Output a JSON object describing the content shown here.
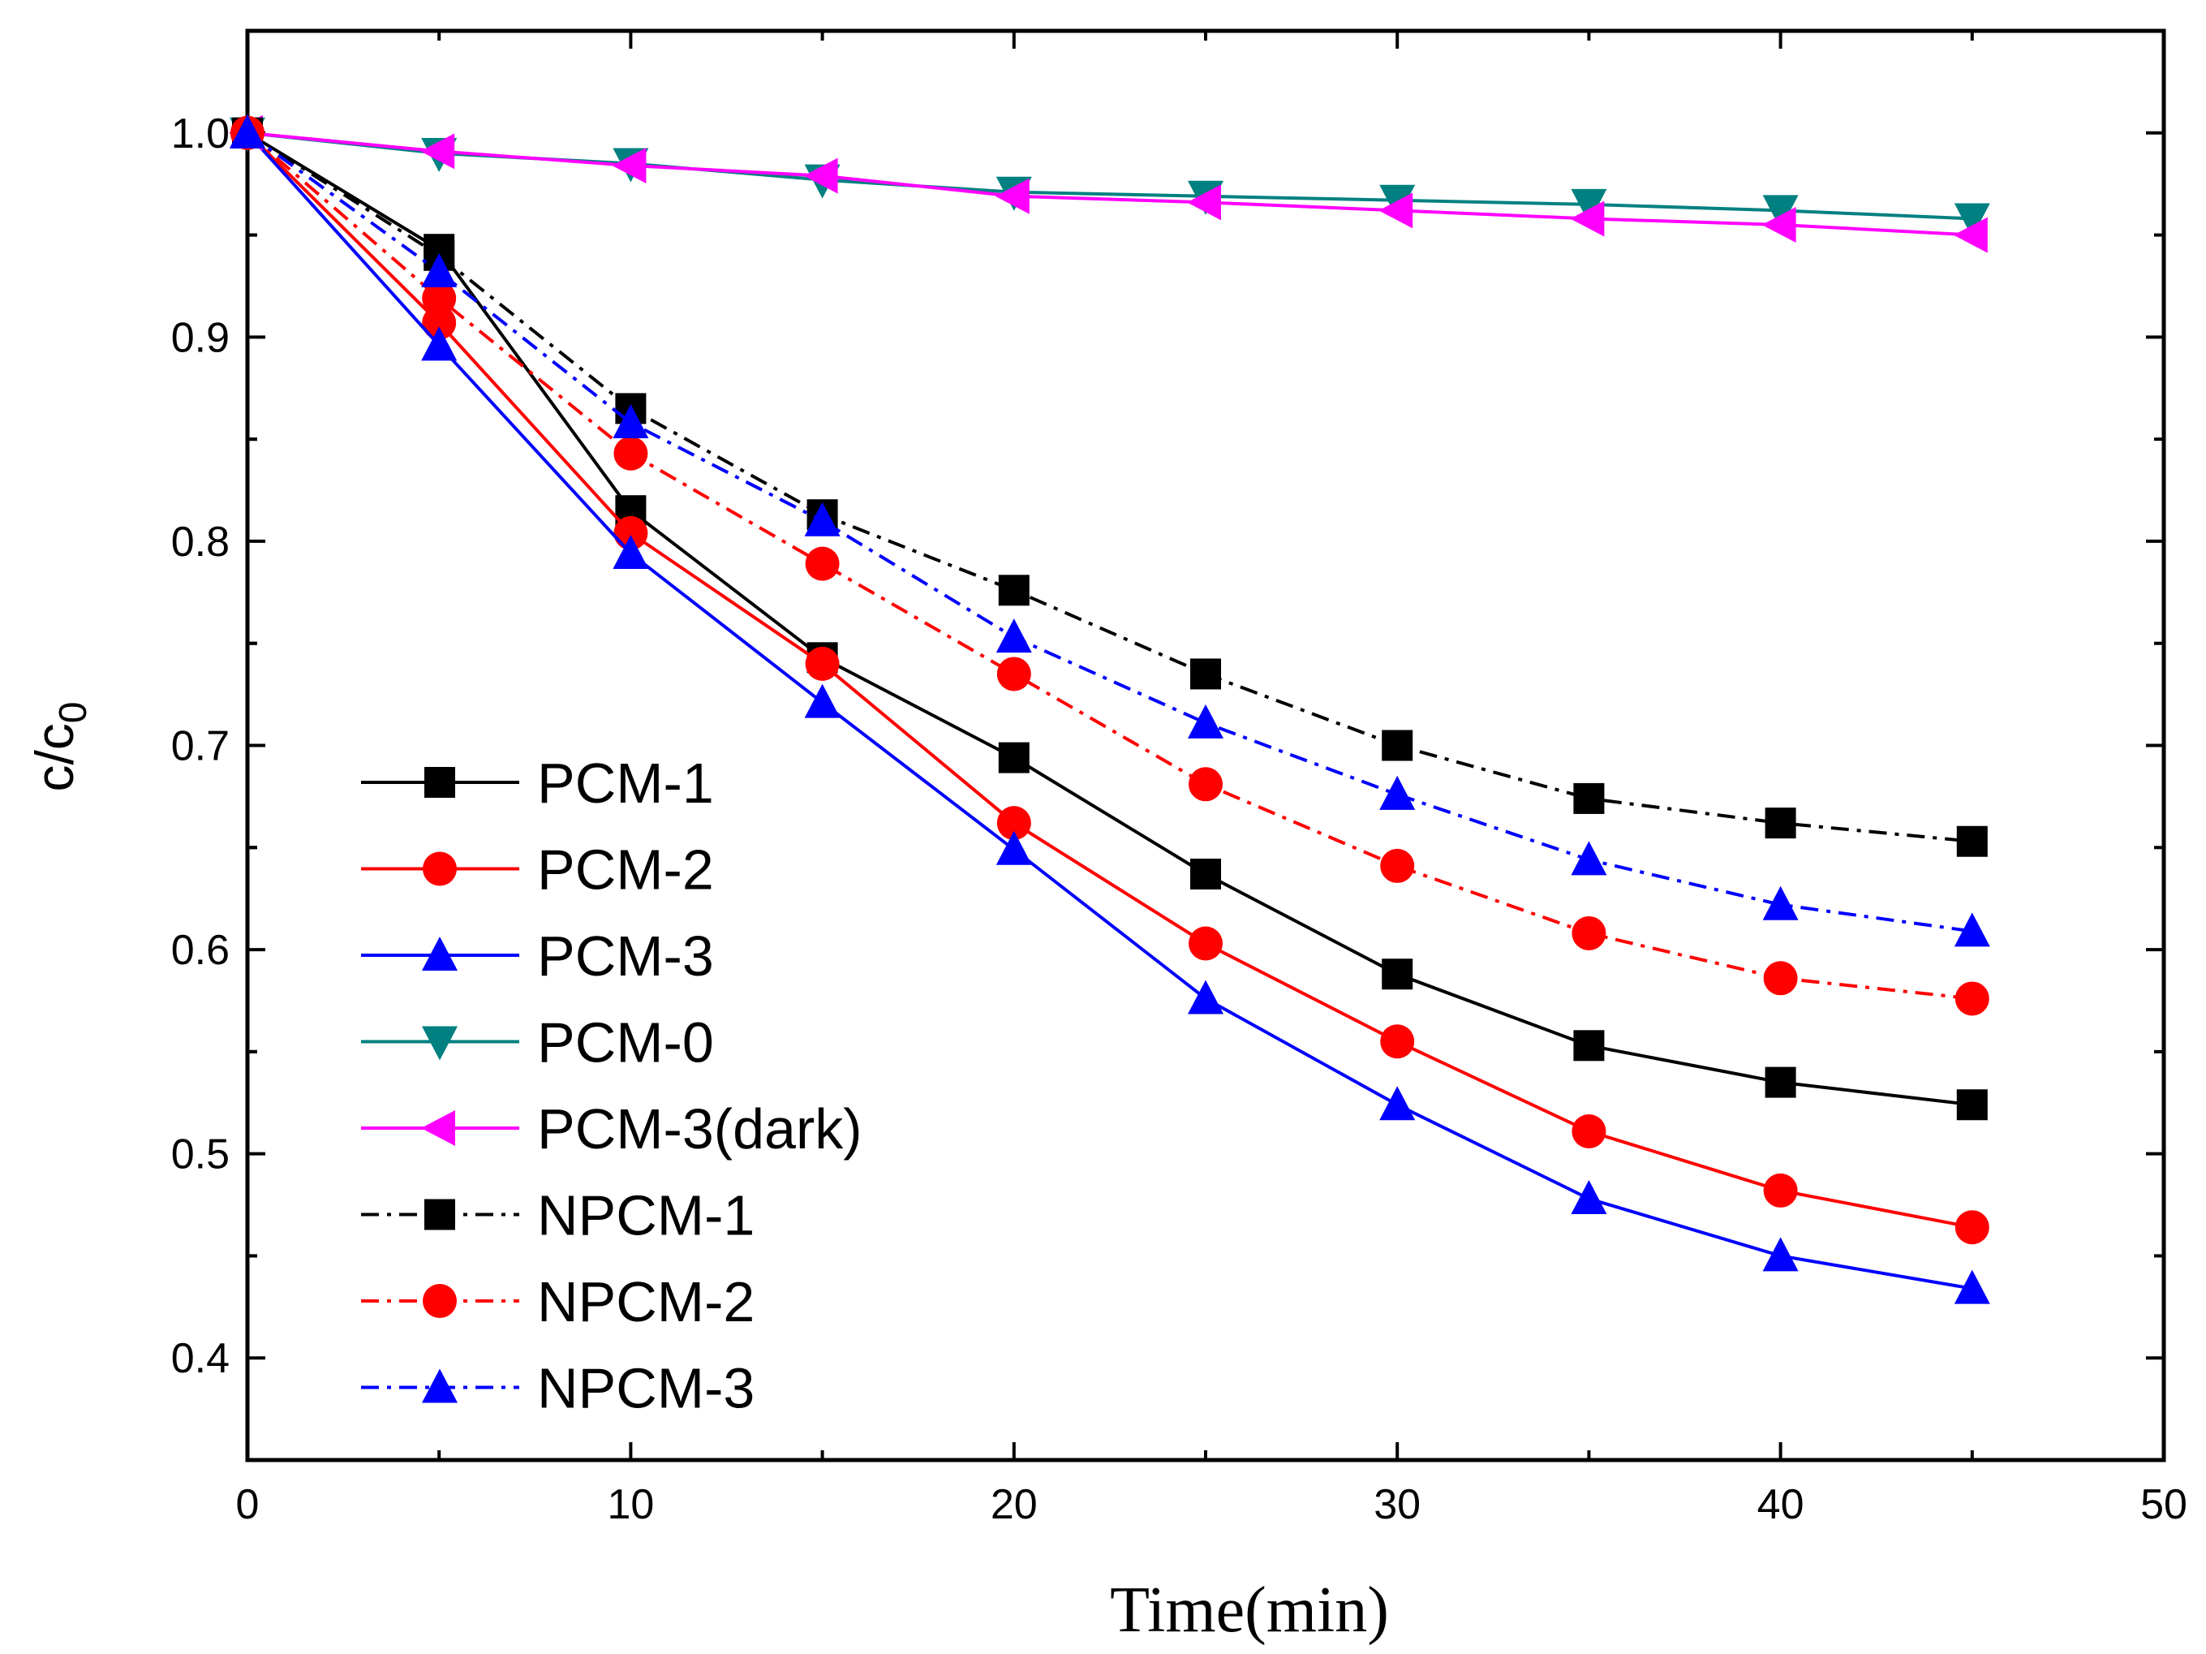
{
  "chart_data": {
    "type": "line",
    "title": "",
    "xlabel": "Time(min)",
    "ylabel": "c/c",
    "ylabel_subscript": "0",
    "xlim": [
      0,
      50
    ],
    "ylim": [
      0.35,
      1.05
    ],
    "xticks": [
      "0",
      "10",
      "20",
      "30",
      "40",
      "50"
    ],
    "yticks": [
      "0.4",
      "0.5",
      "0.6",
      "0.7",
      "0.8",
      "0.9",
      "1.0"
    ],
    "grid": false,
    "legend_position": "bottom-left",
    "x": [
      0,
      5,
      10,
      15,
      20,
      25,
      30,
      35,
      40,
      45
    ],
    "series": [
      {
        "name": "PCM-1",
        "color": "#000000",
        "marker": "square",
        "dash": "solid",
        "values": [
          1.0,
          0.943,
          0.815,
          0.743,
          0.694,
          0.637,
          0.588,
          0.553,
          0.535,
          0.524
        ]
      },
      {
        "name": "PCM-2",
        "color": "#ff0000",
        "marker": "circle",
        "dash": "solid",
        "values": [
          1.0,
          0.907,
          0.804,
          0.74,
          0.662,
          0.603,
          0.555,
          0.511,
          0.482,
          0.464
        ]
      },
      {
        "name": "PCM-3",
        "color": "#0000ff",
        "marker": "triangle-up",
        "dash": "solid",
        "values": [
          1.0,
          0.896,
          0.794,
          0.721,
          0.649,
          0.576,
          0.524,
          0.478,
          0.45,
          0.434
        ]
      },
      {
        "name": "PCM-0",
        "color": "#008080",
        "marker": "triangle-down",
        "dash": "solid",
        "values": [
          1.0,
          0.99,
          0.985,
          0.977,
          0.971,
          0.969,
          0.967,
          0.965,
          0.962,
          0.958
        ]
      },
      {
        "name": "PCM-3(dark)",
        "color": "#ff00ff",
        "marker": "triangle-left",
        "dash": "solid",
        "values": [
          1.0,
          0.991,
          0.984,
          0.979,
          0.969,
          0.966,
          0.962,
          0.958,
          0.955,
          0.95
        ]
      },
      {
        "name": "NPCM-1",
        "color": "#000000",
        "marker": "square",
        "dash": "dashdot",
        "values": [
          1.0,
          0.94,
          0.865,
          0.813,
          0.776,
          0.735,
          0.7,
          0.674,
          0.662,
          0.653
        ]
      },
      {
        "name": "NPCM-2",
        "color": "#ff0000",
        "marker": "circle",
        "dash": "dashdot",
        "values": [
          1.0,
          0.919,
          0.843,
          0.789,
          0.735,
          0.681,
          0.641,
          0.608,
          0.586,
          0.576
        ]
      },
      {
        "name": "NPCM-3",
        "color": "#0000ff",
        "marker": "triangle-up",
        "dash": "dashdot",
        "values": [
          1.0,
          0.932,
          0.858,
          0.81,
          0.753,
          0.711,
          0.676,
          0.644,
          0.622,
          0.609
        ]
      }
    ]
  }
}
